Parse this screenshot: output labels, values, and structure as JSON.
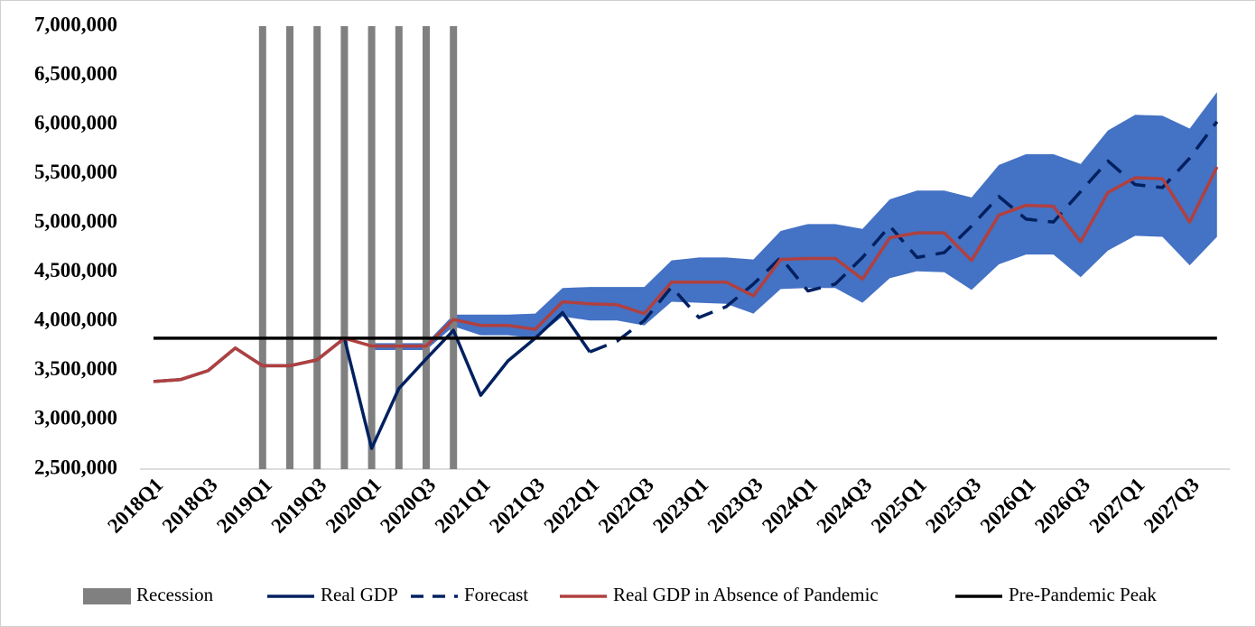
{
  "chart_data": {
    "type": "line",
    "categories": [
      "2018Q1",
      null,
      "2018Q3",
      null,
      "2019Q1",
      null,
      "2019Q3",
      null,
      "2020Q1",
      null,
      "2020Q3",
      null,
      "2021Q1",
      null,
      "2021Q3",
      null,
      "2022Q1",
      null,
      "2022Q3",
      null,
      "2023Q1",
      null,
      "2023Q3",
      null,
      "2024Q1",
      null,
      "2024Q3",
      null,
      "2025Q1",
      null,
      "2025Q3",
      null,
      "2026Q1",
      null,
      "2026Q3",
      null,
      "2027Q1",
      null,
      "2027Q3",
      null
    ],
    "ylim": [
      2500000,
      7000000
    ],
    "yticks": [
      {
        "value": 2500000,
        "label": "2,500,000"
      },
      {
        "value": 3000000,
        "label": "3,000,000"
      },
      {
        "value": 3500000,
        "label": "3,500,000"
      },
      {
        "value": 4000000,
        "label": "4,000,000"
      },
      {
        "value": 4500000,
        "label": "4,500,000"
      },
      {
        "value": 5000000,
        "label": "5,000,000"
      },
      {
        "value": 5500000,
        "label": "5,500,000"
      },
      {
        "value": 6000000,
        "label": "6,000,000"
      },
      {
        "value": 6500000,
        "label": "6,500,000"
      },
      {
        "value": 7000000,
        "label": "7,000,000"
      }
    ],
    "legend": "bottom",
    "band": {
      "color": "#4472c4",
      "lower": [
        null,
        null,
        null,
        null,
        null,
        null,
        null,
        null,
        3710000,
        3710000,
        3710000,
        3950000,
        3860000,
        3860000,
        3830000,
        4050000,
        4010000,
        4010000,
        3960000,
        4200000,
        4190000,
        4180000,
        4080000,
        4330000,
        4340000,
        4340000,
        4190000,
        4440000,
        4510000,
        4500000,
        4320000,
        4580000,
        4680000,
        4680000,
        4450000,
        4720000,
        4870000,
        4860000,
        4570000,
        4860000
      ],
      "upper": [
        null,
        null,
        null,
        null,
        null,
        null,
        null,
        null,
        3780000,
        3780000,
        3780000,
        4070000,
        4070000,
        4070000,
        4080000,
        4340000,
        4350000,
        4350000,
        4350000,
        4620000,
        4650000,
        4650000,
        4630000,
        4920000,
        4990000,
        4990000,
        4940000,
        5240000,
        5330000,
        5330000,
        5260000,
        5590000,
        5700000,
        5700000,
        5600000,
        5940000,
        6100000,
        6090000,
        5960000,
        6330000
      ]
    },
    "series": [
      {
        "name": "Recession",
        "type": "bar",
        "color": "#808080",
        "values": [
          null,
          null,
          null,
          null,
          7000000,
          7000000,
          7000000,
          7000000,
          7000000,
          7000000,
          7000000,
          7000000,
          null,
          null,
          null,
          null,
          null,
          null,
          null,
          null,
          null,
          null,
          null,
          null,
          null,
          null,
          null,
          null,
          null,
          null,
          null,
          null,
          null,
          null,
          null,
          null,
          null,
          null,
          null,
          null
        ]
      },
      {
        "name": "Real GDP",
        "type": "line",
        "color": "#002060",
        "dashed": false,
        "values": [
          3390000,
          3410000,
          3500000,
          3730000,
          3550000,
          3550000,
          3610000,
          3830000,
          2710000,
          3320000,
          3620000,
          3910000,
          3250000,
          3600000,
          3830000,
          4090000,
          3690000,
          null,
          null,
          null,
          null,
          null,
          null,
          null,
          null,
          null,
          null,
          null,
          null,
          null,
          null,
          null,
          null,
          null,
          null,
          null,
          null,
          null,
          null,
          null
        ]
      },
      {
        "name": "Forecast",
        "type": "line",
        "color": "#002060",
        "dashed": true,
        "values": [
          null,
          null,
          null,
          null,
          null,
          null,
          null,
          null,
          null,
          null,
          null,
          null,
          null,
          null,
          null,
          null,
          3690000,
          3800000,
          4010000,
          4350000,
          4040000,
          4150000,
          4380000,
          4650000,
          4310000,
          4380000,
          4650000,
          4970000,
          4650000,
          4700000,
          4970000,
          5270000,
          5040000,
          5010000,
          5320000,
          5630000,
          5390000,
          5360000,
          5660000,
          6030000
        ]
      },
      {
        "name": "Real GDP in Absence of Pandemic",
        "type": "line",
        "color": "#b04040",
        "dashed": false,
        "values": [
          3390000,
          3410000,
          3500000,
          3730000,
          3550000,
          3550000,
          3610000,
          3830000,
          3750000,
          3750000,
          3750000,
          4020000,
          3960000,
          3960000,
          3920000,
          4200000,
          4180000,
          4170000,
          4080000,
          4400000,
          4400000,
          4400000,
          4260000,
          4630000,
          4640000,
          4640000,
          4430000,
          4850000,
          4900000,
          4900000,
          4620000,
          5080000,
          5180000,
          5170000,
          4810000,
          5310000,
          5460000,
          5450000,
          5010000,
          5570000
        ]
      },
      {
        "name": "Pre-Pandemic Peak",
        "type": "line",
        "color": "#000000",
        "dashed": false,
        "values": [
          3830000,
          3830000,
          3830000,
          3830000,
          3830000,
          3830000,
          3830000,
          3830000,
          3830000,
          3830000,
          3830000,
          3830000,
          3830000,
          3830000,
          3830000,
          3830000,
          3830000,
          3830000,
          3830000,
          3830000,
          3830000,
          3830000,
          3830000,
          3830000,
          3830000,
          3830000,
          3830000,
          3830000,
          3830000,
          3830000,
          3830000,
          3830000,
          3830000,
          3830000,
          3830000,
          3830000,
          3830000,
          3830000,
          3830000,
          3830000
        ]
      }
    ]
  }
}
